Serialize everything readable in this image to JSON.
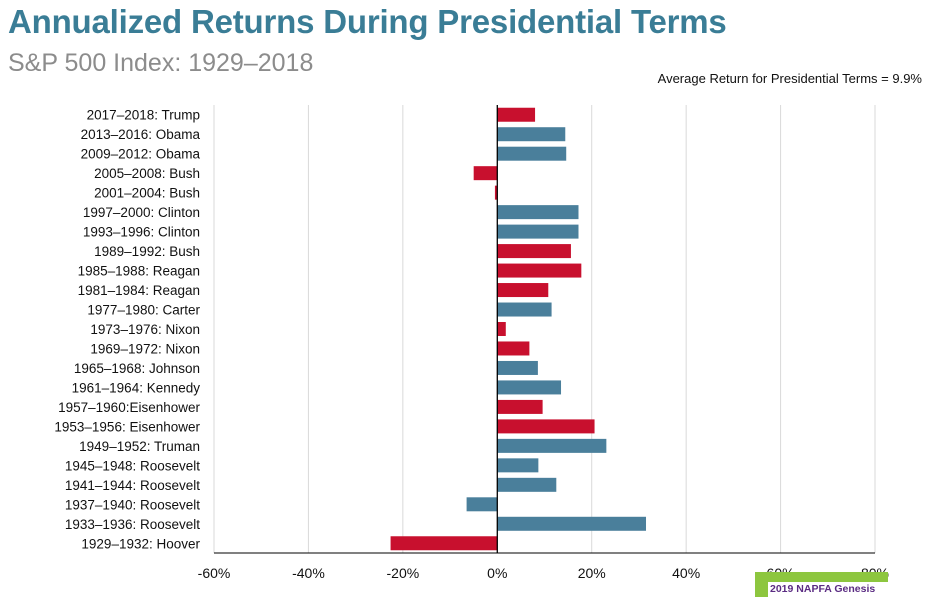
{
  "header": {
    "title": "Annualized Returns During Presidential Terms",
    "subtitle": "S&P 500 Index: 1929–2018",
    "average_note": "Average Return for Presidential Terms = 9.9%"
  },
  "badge": {
    "text": "2019 NAPFA Genesis"
  },
  "colors": {
    "republican": "#c8102e",
    "democrat": "#4a7f9b",
    "title": "#3a7d96",
    "subtitle": "#8c8c8c",
    "badge": "#8dc63f"
  },
  "chart_data": {
    "type": "bar",
    "orientation": "horizontal",
    "xlim": [
      -60,
      80
    ],
    "ticks": [
      -60,
      -40,
      -20,
      0,
      20,
      40,
      60,
      80
    ],
    "tick_suffix": "%",
    "grid": true,
    "categories": [
      "2017–2018: Trump",
      "2013–2016: Obama",
      "2009–2012: Obama",
      "2005–2008: Bush",
      "2001–2004: Bush",
      "1997–2000: Clinton",
      "1993–1996: Clinton",
      "1989–1992: Bush",
      "1985–1988: Reagan",
      "1981–1984: Reagan",
      "1977–1980: Carter",
      "1973–1976: Nixon",
      "1969–1972: Nixon",
      "1965–1968: Johnson",
      "1961–1964: Kennedy",
      "1957–1960:Eisenhower",
      "1953–1956: Eisenhower",
      "1949–1952: Truman",
      "1945–1948: Roosevelt",
      "1941–1944: Roosevelt",
      "1937–1940: Roosevelt",
      "1933–1936: Roosevelt",
      "1929–1932: Hoover"
    ],
    "values": [
      8,
      14.4,
      14.6,
      -5,
      -0.5,
      17.2,
      17.2,
      15.6,
      17.8,
      10.8,
      11.5,
      1.8,
      6.8,
      8.6,
      13.5,
      9.6,
      20.6,
      23.1,
      8.7,
      12.5,
      -6.5,
      31.5,
      -22.6
    ],
    "party": [
      "R",
      "D",
      "D",
      "R",
      "R",
      "D",
      "D",
      "R",
      "R",
      "R",
      "D",
      "R",
      "R",
      "D",
      "D",
      "R",
      "R",
      "D",
      "D",
      "D",
      "D",
      "D",
      "R"
    ]
  }
}
